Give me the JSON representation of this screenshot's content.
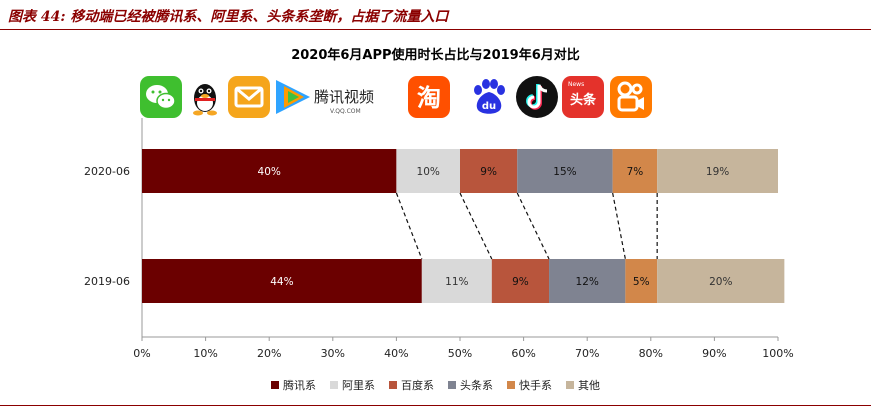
{
  "caption": "图表 44: 移动端已经被腾讯系、阿里系、头条系垄断，占据了流量入口",
  "logos": {
    "tencent_video_text": "腾讯视频",
    "tencent_video_sub": "V.QQ.COM",
    "taobao_char": "淘",
    "baidu_text": "du",
    "toutiao_text": "头条",
    "toutiao_news": "News"
  },
  "chart_data": {
    "type": "bar",
    "orientation": "horizontal",
    "stacked": true,
    "title": "2020年6月APP使用时长占比与2019年6月对比",
    "categories": [
      "2020-06",
      "2019-06"
    ],
    "series": [
      {
        "name": "腾讯系",
        "color": "#6b0000",
        "values": [
          40,
          44
        ],
        "labels": [
          "40%",
          "44%"
        ]
      },
      {
        "name": "阿里系",
        "color": "#d9d9d9",
        "values": [
          10,
          11
        ],
        "labels": [
          "10%",
          "11%"
        ]
      },
      {
        "name": "百度系",
        "color": "#b8553c",
        "values": [
          9,
          9
        ],
        "labels": [
          "9%",
          "9%"
        ]
      },
      {
        "name": "头条系",
        "color": "#7f8391",
        "values": [
          15,
          12
        ],
        "labels": [
          "15%",
          "12%"
        ]
      },
      {
        "name": "快手系",
        "color": "#d2874a",
        "values": [
          7,
          5
        ],
        "labels": [
          "7%",
          "5%"
        ]
      },
      {
        "name": "其他",
        "color": "#c6b59c",
        "values": [
          19,
          20
        ],
        "labels": [
          "19%",
          "20%"
        ]
      }
    ],
    "xlim": [
      0,
      100
    ],
    "xticks": [
      "0%",
      "10%",
      "20%",
      "30%",
      "40%",
      "50%",
      "60%",
      "70%",
      "80%",
      "90%",
      "100%"
    ],
    "grid": false,
    "legend_position": "bottom"
  }
}
